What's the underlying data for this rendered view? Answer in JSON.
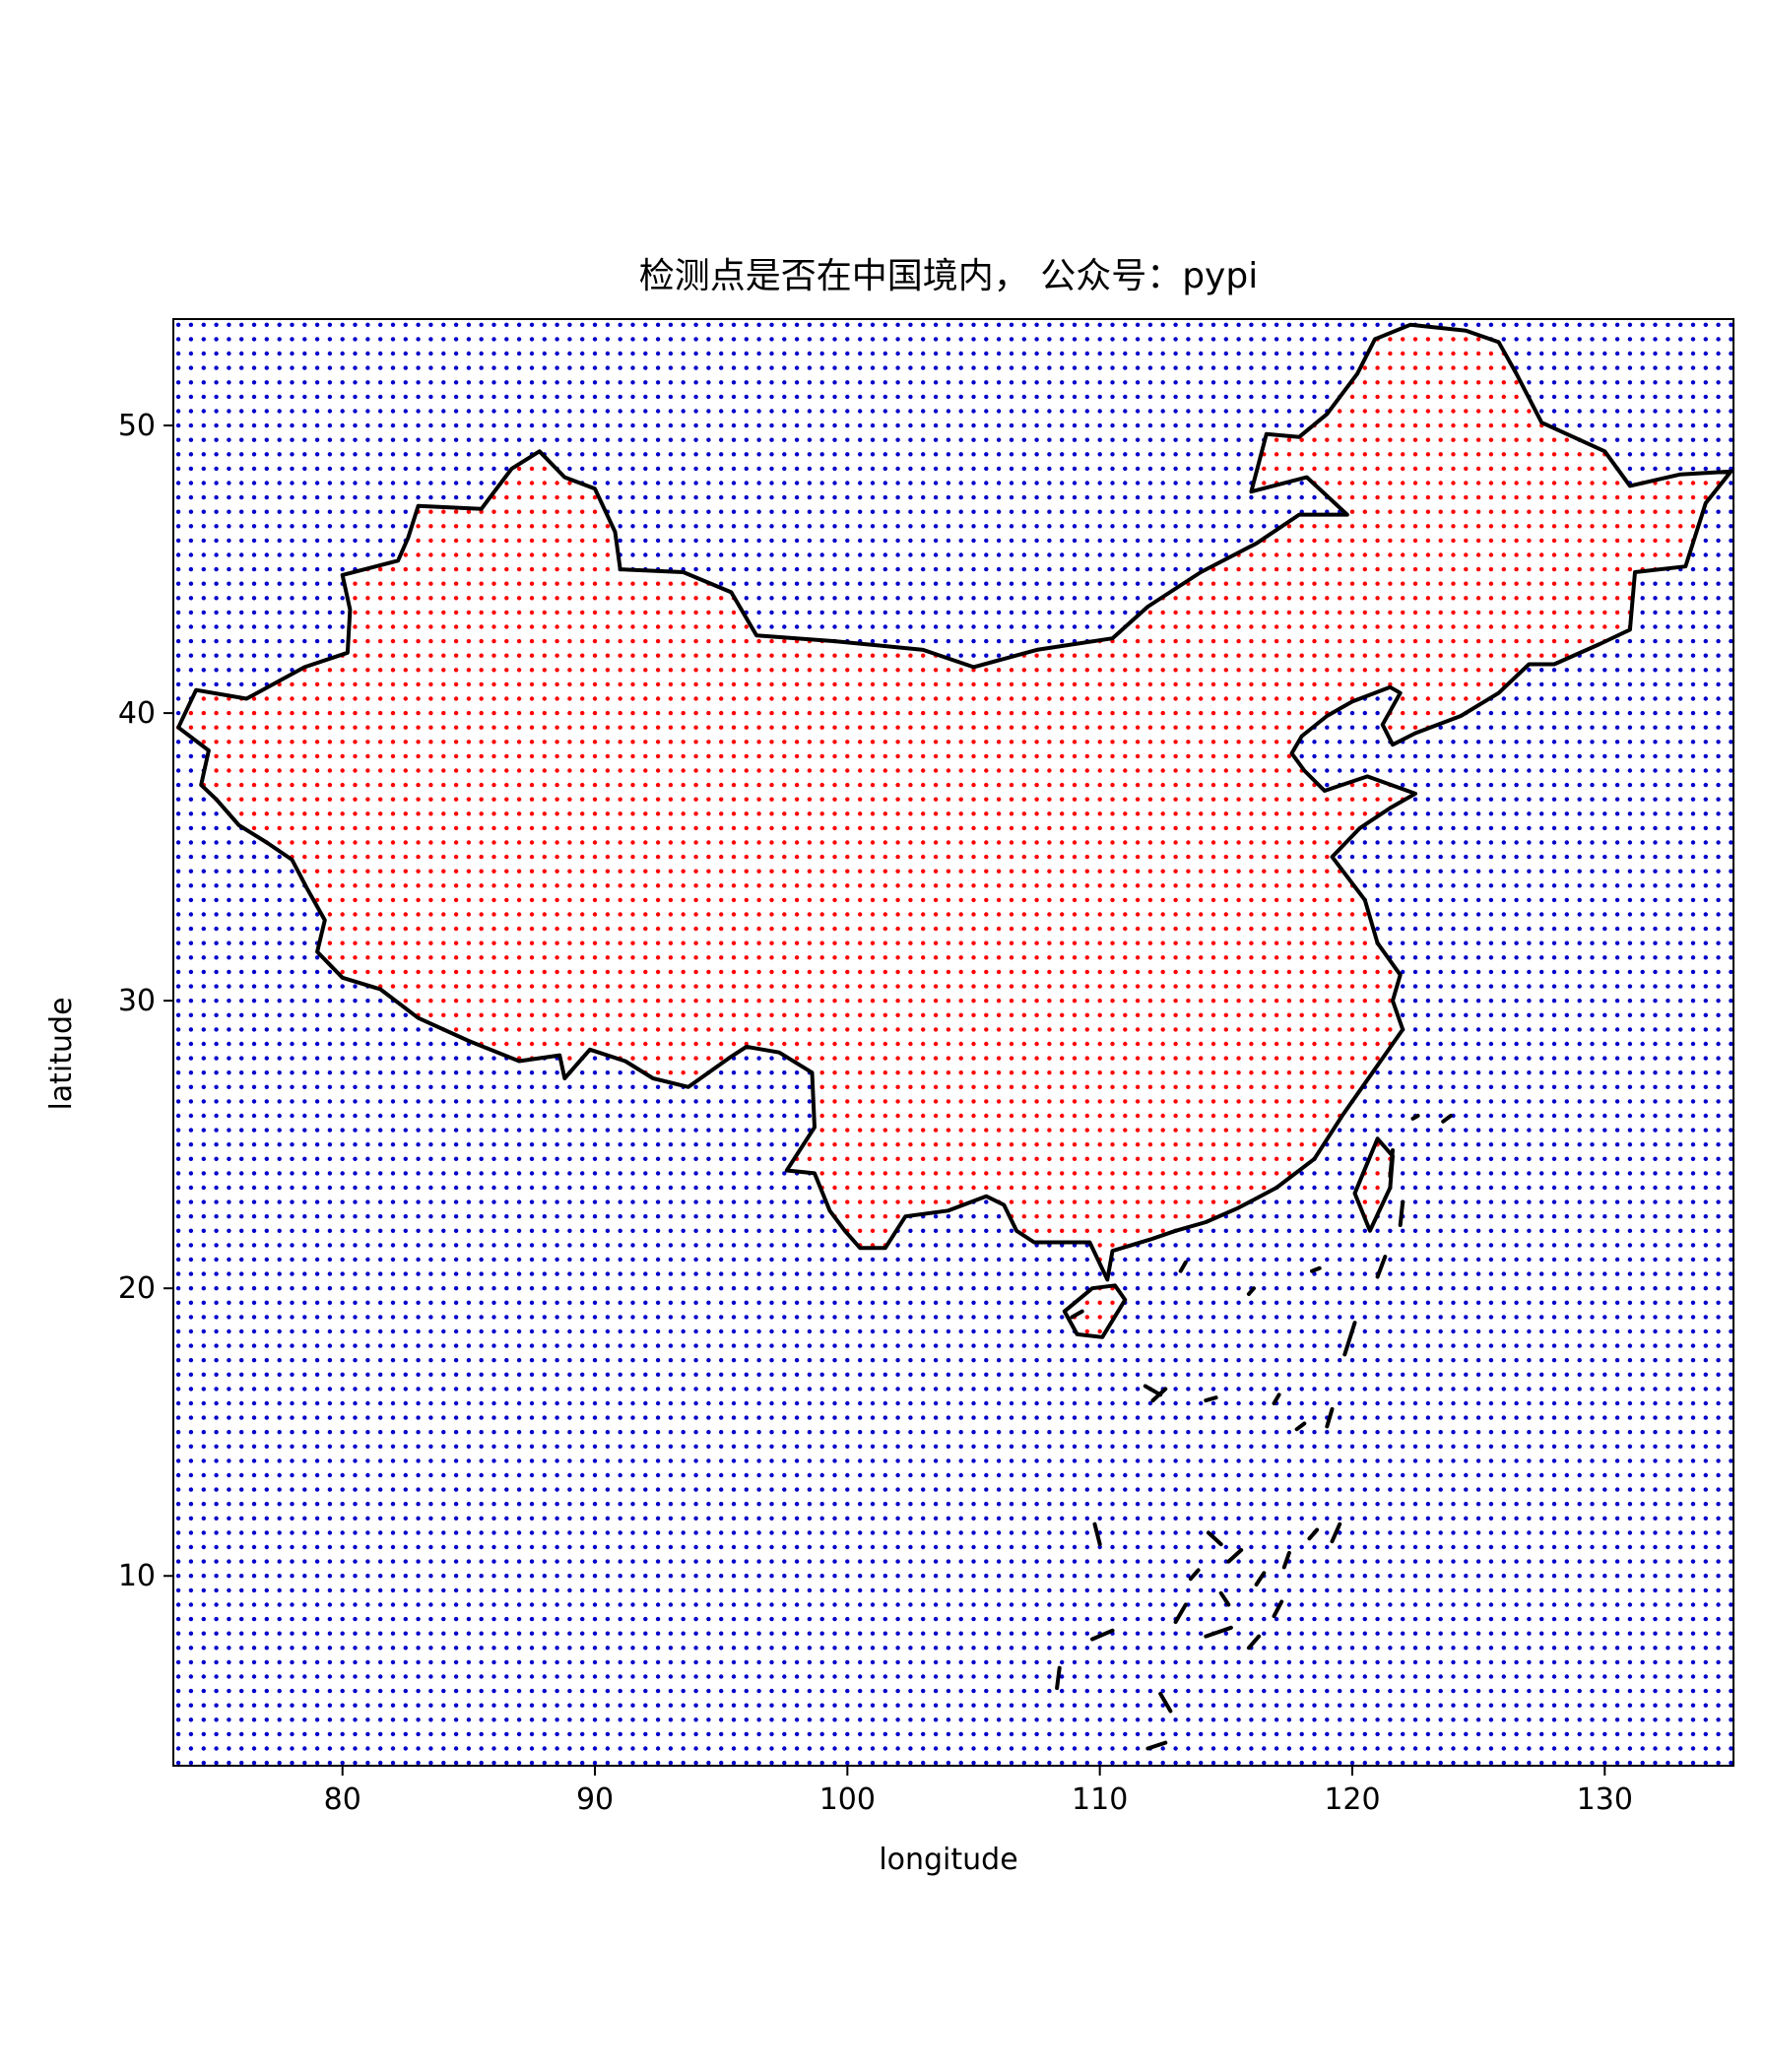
{
  "chart_data": {
    "type": "scatter",
    "title": "检测点是否在中国境内， 公众号：pypi",
    "xlabel": "longitude",
    "ylabel": "latitude",
    "xlim": [
      73.3,
      135.1
    ],
    "ylim": [
      3.4,
      53.7
    ],
    "xticks": [
      80,
      90,
      100,
      110,
      120,
      130
    ],
    "yticks": [
      10,
      20,
      30,
      40,
      50
    ],
    "grid": false,
    "legend": "none",
    "colors": {
      "inside": "#ff0000",
      "outside": "#0000cc",
      "border": "#000000"
    },
    "series": [
      {
        "values": "grid of points spaced 0.5 degrees from 73.5 to 135.0 longitude and 3.5 to 53.5 latitude; points inside the China boundary are drawn red, all others blue"
      }
    ],
    "grid_spacing": 0.5,
    "grid_start": [
      73.5,
      3.5
    ],
    "grid_end": [
      135.0,
      53.5
    ],
    "boundary": [
      [
        73.5,
        39.5
      ],
      [
        74.2,
        40.8
      ],
      [
        76.2,
        40.5
      ],
      [
        78.5,
        41.6
      ],
      [
        80.2,
        42.1
      ],
      [
        80.3,
        43.6
      ],
      [
        80.0,
        44.8
      ],
      [
        82.2,
        45.3
      ],
      [
        82.6,
        46.1
      ],
      [
        83.0,
        47.2
      ],
      [
        85.5,
        47.1
      ],
      [
        86.7,
        48.5
      ],
      [
        87.8,
        49.1
      ],
      [
        88.8,
        48.2
      ],
      [
        90.0,
        47.8
      ],
      [
        90.8,
        46.3
      ],
      [
        91.0,
        45.0
      ],
      [
        93.5,
        44.9
      ],
      [
        95.4,
        44.2
      ],
      [
        96.4,
        42.7
      ],
      [
        99.5,
        42.5
      ],
      [
        103.0,
        42.2
      ],
      [
        105.0,
        41.6
      ],
      [
        107.5,
        42.2
      ],
      [
        110.5,
        42.6
      ],
      [
        111.9,
        43.7
      ],
      [
        114.0,
        44.9
      ],
      [
        116.2,
        45.9
      ],
      [
        117.9,
        46.9
      ],
      [
        119.8,
        46.9
      ],
      [
        118.2,
        48.2
      ],
      [
        116.0,
        47.7
      ],
      [
        116.6,
        49.7
      ],
      [
        117.9,
        49.6
      ],
      [
        119.0,
        50.4
      ],
      [
        120.2,
        51.8
      ],
      [
        120.9,
        53.0
      ],
      [
        122.3,
        53.5
      ],
      [
        124.5,
        53.3
      ],
      [
        125.8,
        52.9
      ],
      [
        126.5,
        51.8
      ],
      [
        127.5,
        50.1
      ],
      [
        130.0,
        49.1
      ],
      [
        131.0,
        47.9
      ],
      [
        133.0,
        48.3
      ],
      [
        135.0,
        48.4
      ],
      [
        134.0,
        47.3
      ],
      [
        133.2,
        45.1
      ],
      [
        131.2,
        44.9
      ],
      [
        131.0,
        42.9
      ],
      [
        129.8,
        42.4
      ],
      [
        128.0,
        41.7
      ],
      [
        127.0,
        41.7
      ],
      [
        125.8,
        40.7
      ],
      [
        124.3,
        39.9
      ],
      [
        122.5,
        39.3
      ],
      [
        121.6,
        38.9
      ],
      [
        121.2,
        39.6
      ],
      [
        121.9,
        40.7
      ],
      [
        121.5,
        40.9
      ],
      [
        120.0,
        40.4
      ],
      [
        119.0,
        39.9
      ],
      [
        118.0,
        39.2
      ],
      [
        117.6,
        38.6
      ],
      [
        118.1,
        38.0
      ],
      [
        118.9,
        37.3
      ],
      [
        120.6,
        37.8
      ],
      [
        122.5,
        37.2
      ],
      [
        121.5,
        36.7
      ],
      [
        120.3,
        36.0
      ],
      [
        119.2,
        35.0
      ],
      [
        120.5,
        33.5
      ],
      [
        121.0,
        32.0
      ],
      [
        121.9,
        30.9
      ],
      [
        121.6,
        30.0
      ],
      [
        122.0,
        29.0
      ],
      [
        121.2,
        28.0
      ],
      [
        120.4,
        27.0
      ],
      [
        119.6,
        26.0
      ],
      [
        118.5,
        24.5
      ],
      [
        117.0,
        23.5
      ],
      [
        115.5,
        22.8
      ],
      [
        114.2,
        22.3
      ],
      [
        113.0,
        22.0
      ],
      [
        112.0,
        21.7
      ],
      [
        110.5,
        21.3
      ],
      [
        110.3,
        20.3
      ],
      [
        109.6,
        21.6
      ],
      [
        108.5,
        21.6
      ],
      [
        107.4,
        21.6
      ],
      [
        106.7,
        22.0
      ],
      [
        106.2,
        22.9
      ],
      [
        105.5,
        23.2
      ],
      [
        104.0,
        22.7
      ],
      [
        102.3,
        22.5
      ],
      [
        101.5,
        21.4
      ],
      [
        100.5,
        21.4
      ],
      [
        99.9,
        22.0
      ],
      [
        99.3,
        22.7
      ],
      [
        98.7,
        24.0
      ],
      [
        97.6,
        24.1
      ],
      [
        98.7,
        25.6
      ],
      [
        98.6,
        27.5
      ],
      [
        97.3,
        28.2
      ],
      [
        96.0,
        28.4
      ],
      [
        95.3,
        28.0
      ],
      [
        93.7,
        27.0
      ],
      [
        92.3,
        27.3
      ],
      [
        91.2,
        27.9
      ],
      [
        89.8,
        28.3
      ],
      [
        88.8,
        27.3
      ],
      [
        88.6,
        28.1
      ],
      [
        87.0,
        27.9
      ],
      [
        85.0,
        28.6
      ],
      [
        83.0,
        29.4
      ],
      [
        81.5,
        30.4
      ],
      [
        80.0,
        30.8
      ],
      [
        79.0,
        31.7
      ],
      [
        79.3,
        32.8
      ],
      [
        78.6,
        33.9
      ],
      [
        78.0,
        34.9
      ],
      [
        77.0,
        35.5
      ],
      [
        75.9,
        36.1
      ],
      [
        75.0,
        37.0
      ],
      [
        74.4,
        37.5
      ],
      [
        74.7,
        38.7
      ],
      [
        73.5,
        39.5
      ]
    ],
    "hainan": [
      [
        108.6,
        19.2
      ],
      [
        109.1,
        18.4
      ],
      [
        110.1,
        18.3
      ],
      [
        111.0,
        19.6
      ],
      [
        110.6,
        20.1
      ],
      [
        109.7,
        20.0
      ],
      [
        108.6,
        19.2
      ]
    ],
    "taiwan": [
      [
        120.1,
        23.3
      ],
      [
        120.7,
        22.0
      ],
      [
        121.5,
        23.5
      ],
      [
        121.6,
        24.6
      ],
      [
        121.0,
        25.2
      ],
      [
        120.1,
        23.3
      ]
    ],
    "islands": [
      [
        [
          111.8,
          16.6
        ],
        [
          112.4,
          16.3
        ]
      ],
      [
        [
          112.1,
          16.1
        ],
        [
          112.6,
          16.5
        ]
      ],
      [
        [
          114.2,
          16.1
        ],
        [
          114.6,
          16.2
        ]
      ],
      [
        [
          116.9,
          16.0
        ],
        [
          117.1,
          16.3
        ]
      ],
      [
        [
          119.0,
          15.2
        ],
        [
          119.2,
          15.8
        ]
      ],
      [
        [
          117.8,
          15.1
        ],
        [
          118.1,
          15.3
        ]
      ],
      [
        [
          109.8,
          11.8
        ],
        [
          110.0,
          11.1
        ]
      ],
      [
        [
          108.4,
          6.8
        ],
        [
          108.3,
          6.1
        ]
      ],
      [
        [
          109.7,
          7.8
        ],
        [
          110.5,
          8.1
        ]
      ],
      [
        [
          112.4,
          5.9
        ],
        [
          112.8,
          5.3
        ]
      ],
      [
        [
          111.9,
          4.0
        ],
        [
          112.6,
          4.2
        ]
      ],
      [
        [
          113.0,
          8.4
        ],
        [
          113.4,
          9.0
        ]
      ],
      [
        [
          114.3,
          11.5
        ],
        [
          114.8,
          11.1
        ]
      ],
      [
        [
          115.1,
          10.5
        ],
        [
          115.6,
          10.9
        ]
      ],
      [
        [
          116.2,
          9.7
        ],
        [
          116.5,
          10.1
        ]
      ],
      [
        [
          117.3,
          10.3
        ],
        [
          117.5,
          10.8
        ]
      ],
      [
        [
          118.3,
          11.3
        ],
        [
          118.6,
          11.6
        ]
      ],
      [
        [
          119.2,
          11.2
        ],
        [
          119.5,
          11.8
        ]
      ],
      [
        [
          114.2,
          7.9
        ],
        [
          115.2,
          8.2
        ]
      ],
      [
        [
          115.9,
          7.5
        ],
        [
          116.3,
          7.9
        ]
      ],
      [
        [
          116.9,
          8.6
        ],
        [
          117.2,
          9.1
        ]
      ],
      [
        [
          113.6,
          9.9
        ],
        [
          113.9,
          10.2
        ]
      ],
      [
        [
          114.8,
          9.4
        ],
        [
          115.1,
          9.0
        ]
      ],
      [
        [
          121.5,
          23.9
        ],
        [
          121.6,
          24.8
        ]
      ],
      [
        [
          121.9,
          22.2
        ],
        [
          122.0,
          23.0
        ]
      ],
      [
        [
          121.0,
          20.4
        ],
        [
          121.3,
          21.1
        ]
      ],
      [
        [
          119.7,
          17.7
        ],
        [
          120.1,
          18.8
        ]
      ],
      [
        [
          118.4,
          20.6
        ],
        [
          118.7,
          20.7
        ]
      ],
      [
        [
          115.9,
          19.8
        ],
        [
          116.1,
          20.0
        ]
      ],
      [
        [
          113.2,
          20.6
        ],
        [
          113.4,
          20.9
        ]
      ],
      [
        [
          122.4,
          25.9
        ],
        [
          122.6,
          26.0
        ]
      ],
      [
        [
          123.6,
          25.8
        ],
        [
          123.9,
          26.0
        ]
      ],
      [
        [
          108.9,
          19.0
        ],
        [
          109.3,
          19.2
        ]
      ]
    ]
  }
}
